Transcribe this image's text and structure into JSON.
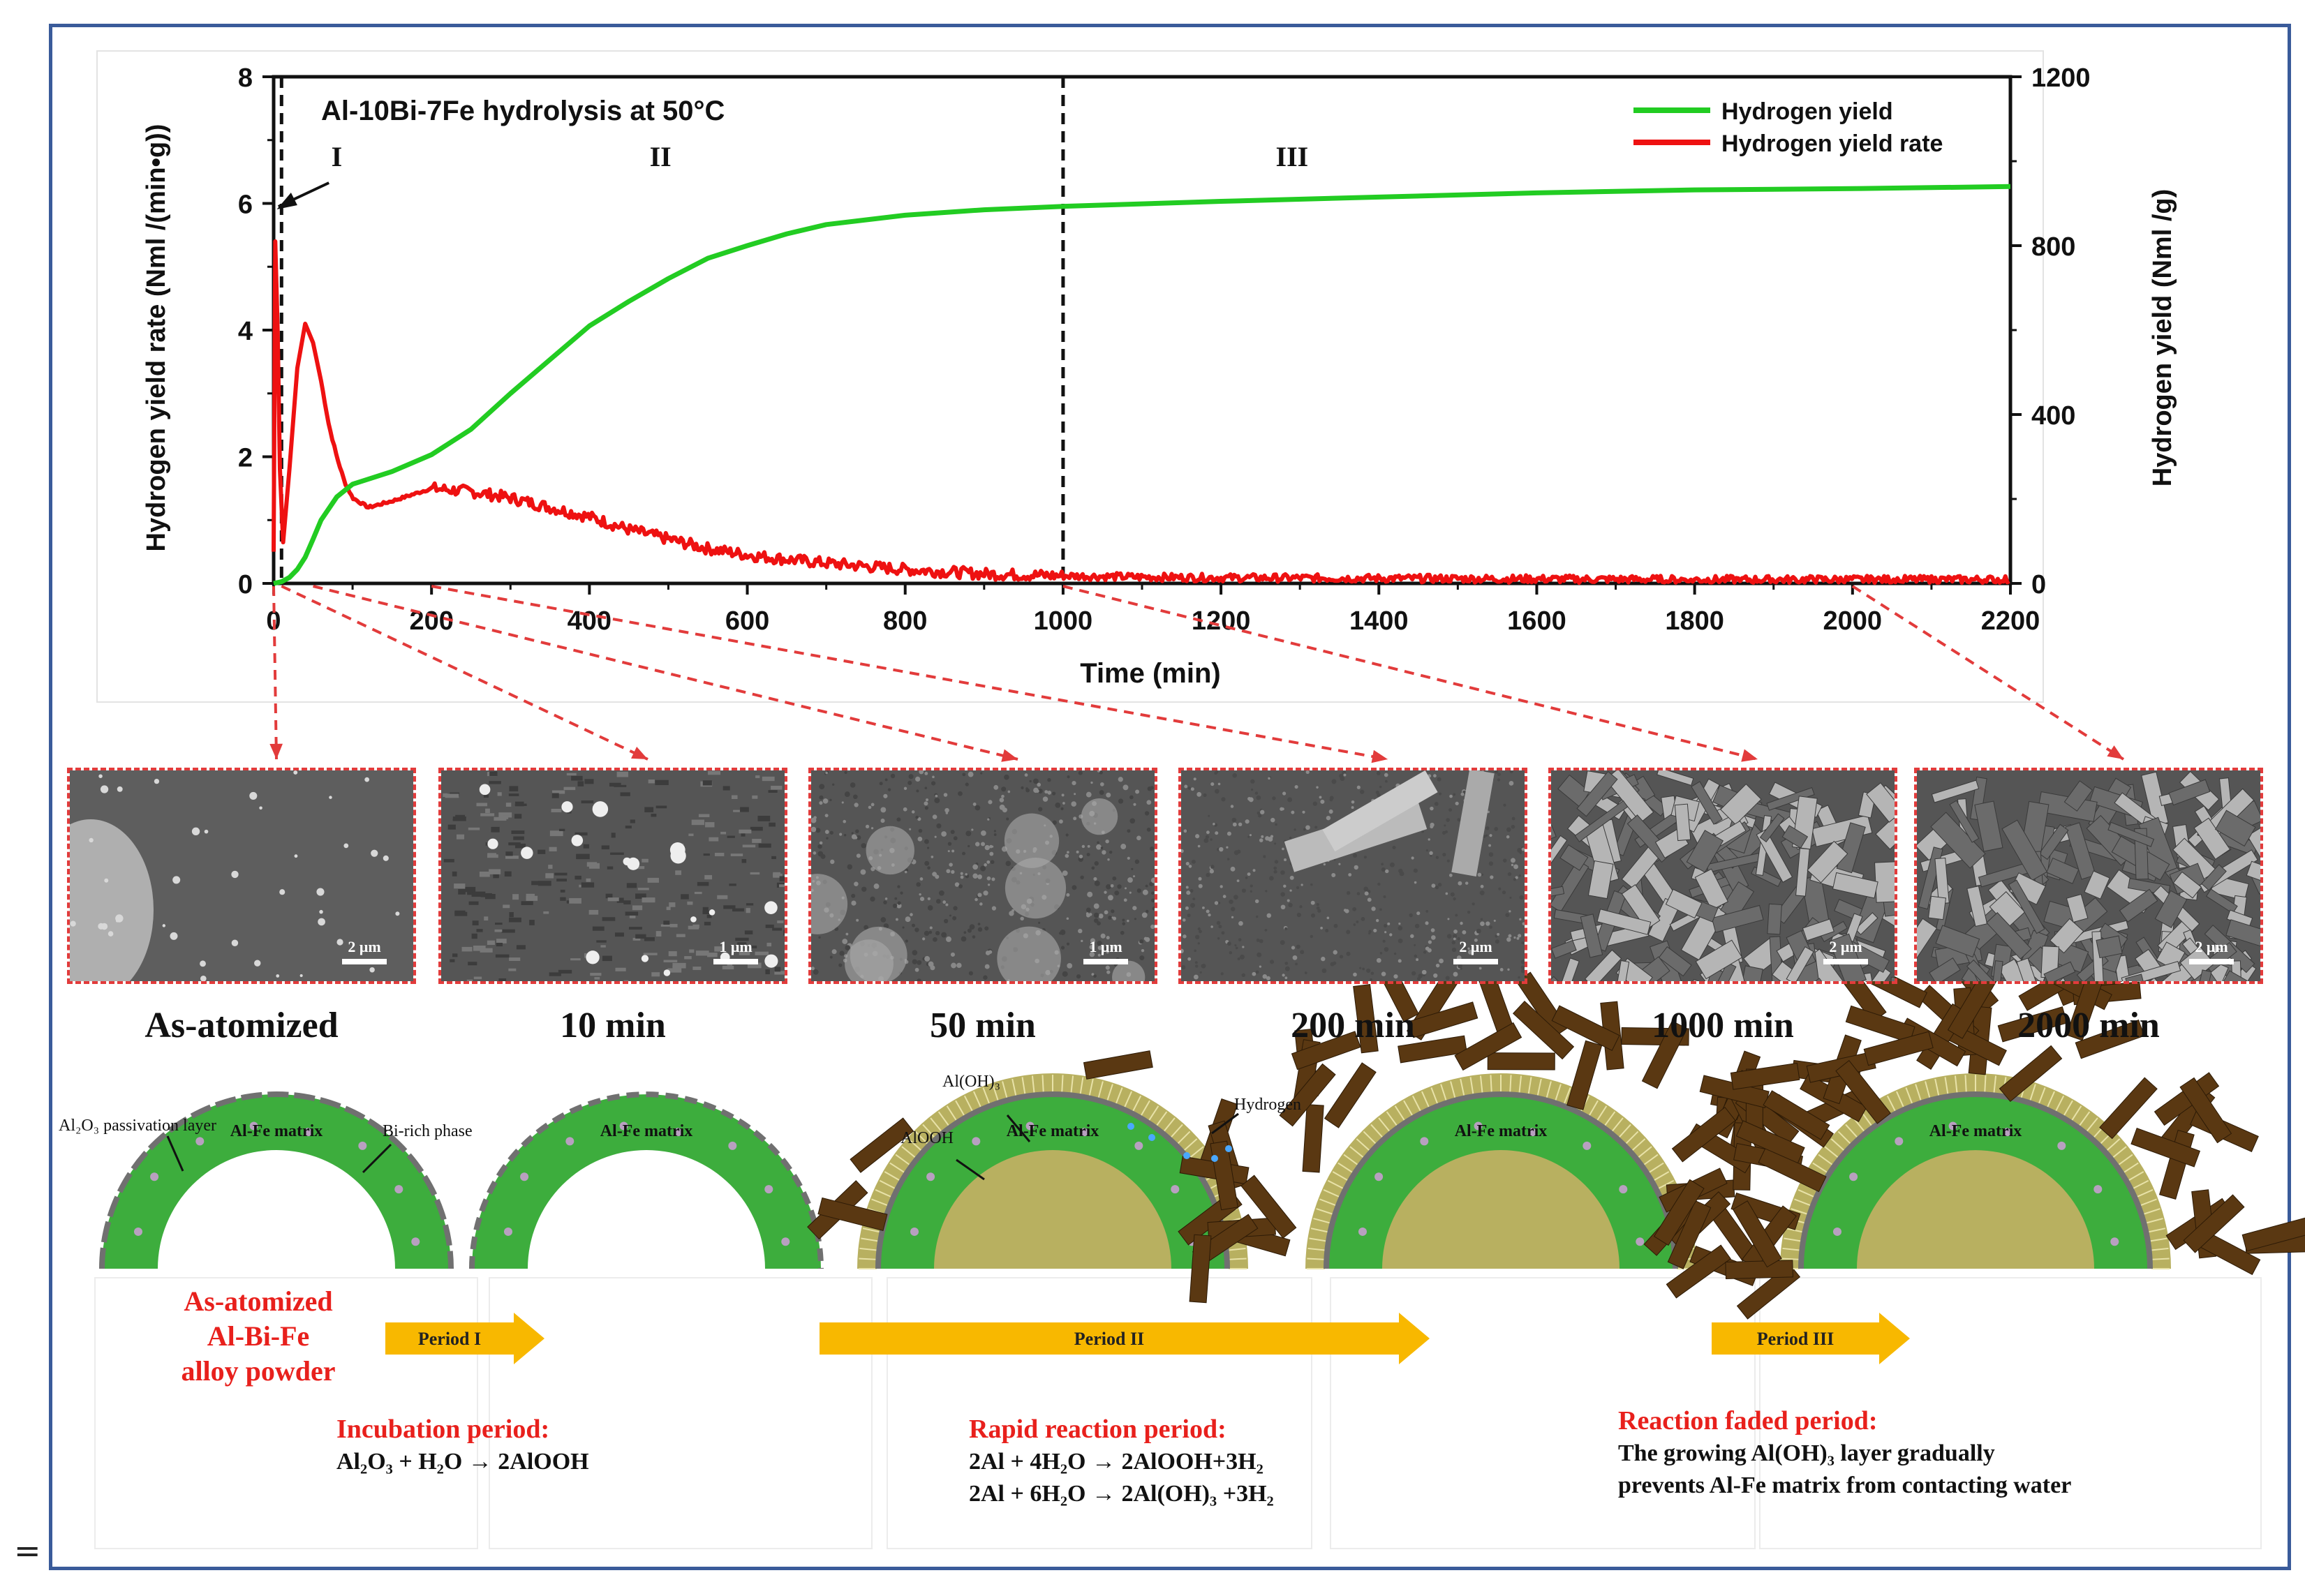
{
  "chart_data": {
    "type": "line",
    "title": "Al-10Bi-7Fe hydrolysis at 50°C",
    "xlabel": "Time (min)",
    "ylabel_left": "Hydrogen yield rate (Nml /(min•g))",
    "ylabel_right": "Hydrogen yield (Nml /g)",
    "xlim": [
      0,
      2200
    ],
    "ylim_left": [
      0,
      8
    ],
    "ylim_right": [
      0,
      1200
    ],
    "x_ticks": [
      0,
      200,
      400,
      600,
      800,
      1000,
      1200,
      1400,
      1600,
      1800,
      2000,
      2200
    ],
    "y_ticks_left": [
      0,
      2,
      4,
      6,
      8
    ],
    "y_ticks_right": [
      0,
      400,
      800,
      1200
    ],
    "legend_position": "top-right",
    "grid": false,
    "period_boundaries": [
      10,
      1000
    ],
    "period_labels": [
      {
        "text": "I",
        "x": 80
      },
      {
        "text": "II",
        "x": 490
      },
      {
        "text": "III",
        "x": 1290
      }
    ],
    "series": [
      {
        "name": "Hydrogen yield",
        "axis": "right",
        "color": "#22cc22",
        "x": [
          0,
          10,
          20,
          30,
          40,
          50,
          60,
          80,
          100,
          150,
          200,
          250,
          300,
          350,
          400,
          450,
          500,
          550,
          600,
          650,
          700,
          800,
          900,
          1000,
          1200,
          1400,
          1600,
          1800,
          2000,
          2200
        ],
        "y": [
          0,
          4,
          14,
          33,
          62,
          105,
          150,
          205,
          235,
          265,
          305,
          365,
          450,
          530,
          610,
          668,
          722,
          770,
          800,
          828,
          850,
          872,
          885,
          893,
          905,
          915,
          925,
          932,
          935,
          940
        ]
      },
      {
        "name": "Hydrogen yield rate",
        "axis": "left",
        "color": "#ee1111",
        "x": [
          0,
          2,
          5,
          8,
          12,
          20,
          30,
          40,
          50,
          60,
          70,
          80,
          90,
          100,
          120,
          150,
          200,
          250,
          300,
          350,
          400,
          450,
          500,
          550,
          600,
          650,
          700,
          800,
          900,
          1000,
          1100,
          1200,
          1400,
          1600,
          1800,
          2000,
          2200
        ],
        "y": [
          0.5,
          5.4,
          4.0,
          1.8,
          0.65,
          1.8,
          3.4,
          4.1,
          3.8,
          3.2,
          2.5,
          2.0,
          1.6,
          1.35,
          1.2,
          1.3,
          1.5,
          1.45,
          1.35,
          1.2,
          1.05,
          0.85,
          0.7,
          0.55,
          0.45,
          0.38,
          0.32,
          0.22,
          0.15,
          0.12,
          0.1,
          0.09,
          0.08,
          0.07,
          0.06,
          0.06,
          0.06
        ]
      }
    ]
  },
  "sem_images": [
    {
      "label": "As-atomized",
      "scale": "2 μm",
      "x_link": 0,
      "texture": "smooth"
    },
    {
      "label": "10 min",
      "scale": "1 μm",
      "x_link": 10,
      "texture": "specks"
    },
    {
      "label": "50 min",
      "scale": "1 μm",
      "x_link": 50,
      "texture": "fuzzy"
    },
    {
      "label": "200 min",
      "scale": "2 μm",
      "x_link": 200,
      "texture": "rods"
    },
    {
      "label": "1000 min",
      "scale": "2 μm",
      "x_link": 1000,
      "texture": "crystals"
    },
    {
      "label": "2000 min",
      "scale": "2 μm",
      "x_link": 2000,
      "texture": "crystals"
    }
  ],
  "schematic": {
    "matrix_label": "Al-Fe matrix",
    "annotations": {
      "passivation": "Al₂O₃ passivation layer",
      "bi_phase": "Bi-rich phase",
      "aloh3": "Al(OH)₃",
      "alooh": "AlOOH",
      "hydrogen": "Hydrogen"
    },
    "arrows": [
      "Period I",
      "Period II",
      "Period III"
    ],
    "start_label": [
      "As-atomized",
      "Al-Bi-Fe",
      "alloy powder"
    ],
    "periods": [
      {
        "title": "Incubation period:",
        "lines": [
          "Al₂O₃ + H₂O → 2AlOOH"
        ]
      },
      {
        "title": "Rapid reaction period:",
        "lines": [
          "2Al + 4H₂O → 2AlOOH+3H₂",
          "2Al + 6H₂O → 2Al(OH)₃ +3H₂"
        ]
      },
      {
        "title": "Reaction faded period:",
        "lines": [
          "The growing Al(OH)₃  layer gradually",
          "prevents Al-Fe matrix from contacting water"
        ]
      }
    ]
  },
  "colors": {
    "frame": "#3a5b9a",
    "matrix": "#3dad3d",
    "arrow": "#f8b800",
    "red_text": "#e8201c",
    "crystal": "#5a3812"
  },
  "page_mark": "="
}
